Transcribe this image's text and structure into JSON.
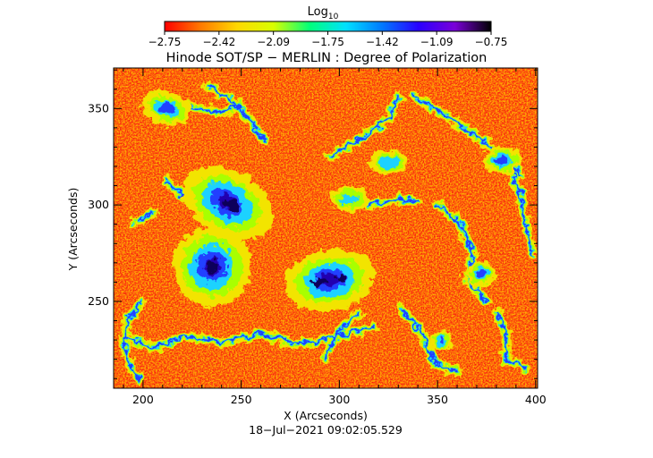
{
  "colorbar": {
    "label_main": "Log",
    "label_sub": "10",
    "ticks": [
      "−2.75",
      "−2.42",
      "−2.09",
      "−1.75",
      "−1.42",
      "−1.09",
      "−0.75"
    ],
    "colors": [
      "#ff0000",
      "#ff7a00",
      "#ffd800",
      "#d8ff00",
      "#00ff7a",
      "#00e0ff",
      "#0078ff",
      "#2a00ff",
      "#7a00d8",
      "#000000"
    ]
  },
  "title": "Hinode SOT/SP − MERLIN : Degree of Polarization",
  "axes": {
    "xlabel": "X (Arcseconds)",
    "ylabel": "Y (Arcseconds)",
    "x_ticks": [
      "200",
      "250",
      "300",
      "350",
      "400"
    ],
    "y_ticks": [
      "350",
      "300",
      "250"
    ],
    "xlim": [
      185,
      401
    ],
    "ylim": [
      205,
      371
    ]
  },
  "timestamp": "18−Jul−2021 09:02:05.529",
  "map": {
    "colors": {
      "background": "#ff4a14",
      "noise_dark": "#e81800",
      "noise_light": "#ff7a1e",
      "ring": "#f2e400",
      "ring2": "#a8ff00",
      "cyan": "#1ad2ff",
      "blue": "#2040ff",
      "indigo": "#2200b0",
      "core": "#10005a"
    }
  }
}
